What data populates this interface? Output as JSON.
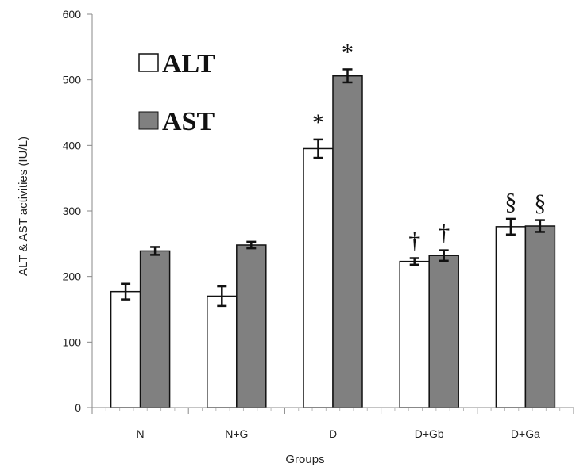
{
  "chart_data": {
    "type": "bar",
    "title": "",
    "xlabel": "Groups",
    "ylabel": "ALT & AST activities (IU/L)",
    "categories": [
      "N",
      "N+G",
      "D",
      "D+Gb",
      "D+Ga"
    ],
    "ylim": [
      0,
      600
    ],
    "yticks": [
      0,
      100,
      200,
      300,
      400,
      500,
      600
    ],
    "grid": false,
    "legend_position": "top-left",
    "series": [
      {
        "name": "ALT",
        "color": "#ffffff",
        "values": [
          177,
          170,
          395,
          223,
          276
        ],
        "errors": [
          12,
          15,
          14,
          5,
          12
        ],
        "annotations": [
          "",
          "",
          "*",
          "†",
          "§"
        ]
      },
      {
        "name": "AST",
        "color": "#808080",
        "values": [
          239,
          248,
          506,
          232,
          277
        ],
        "errors": [
          6,
          5,
          10,
          8,
          9
        ],
        "annotations": [
          "",
          "",
          "*",
          "†",
          "§"
        ]
      }
    ]
  }
}
